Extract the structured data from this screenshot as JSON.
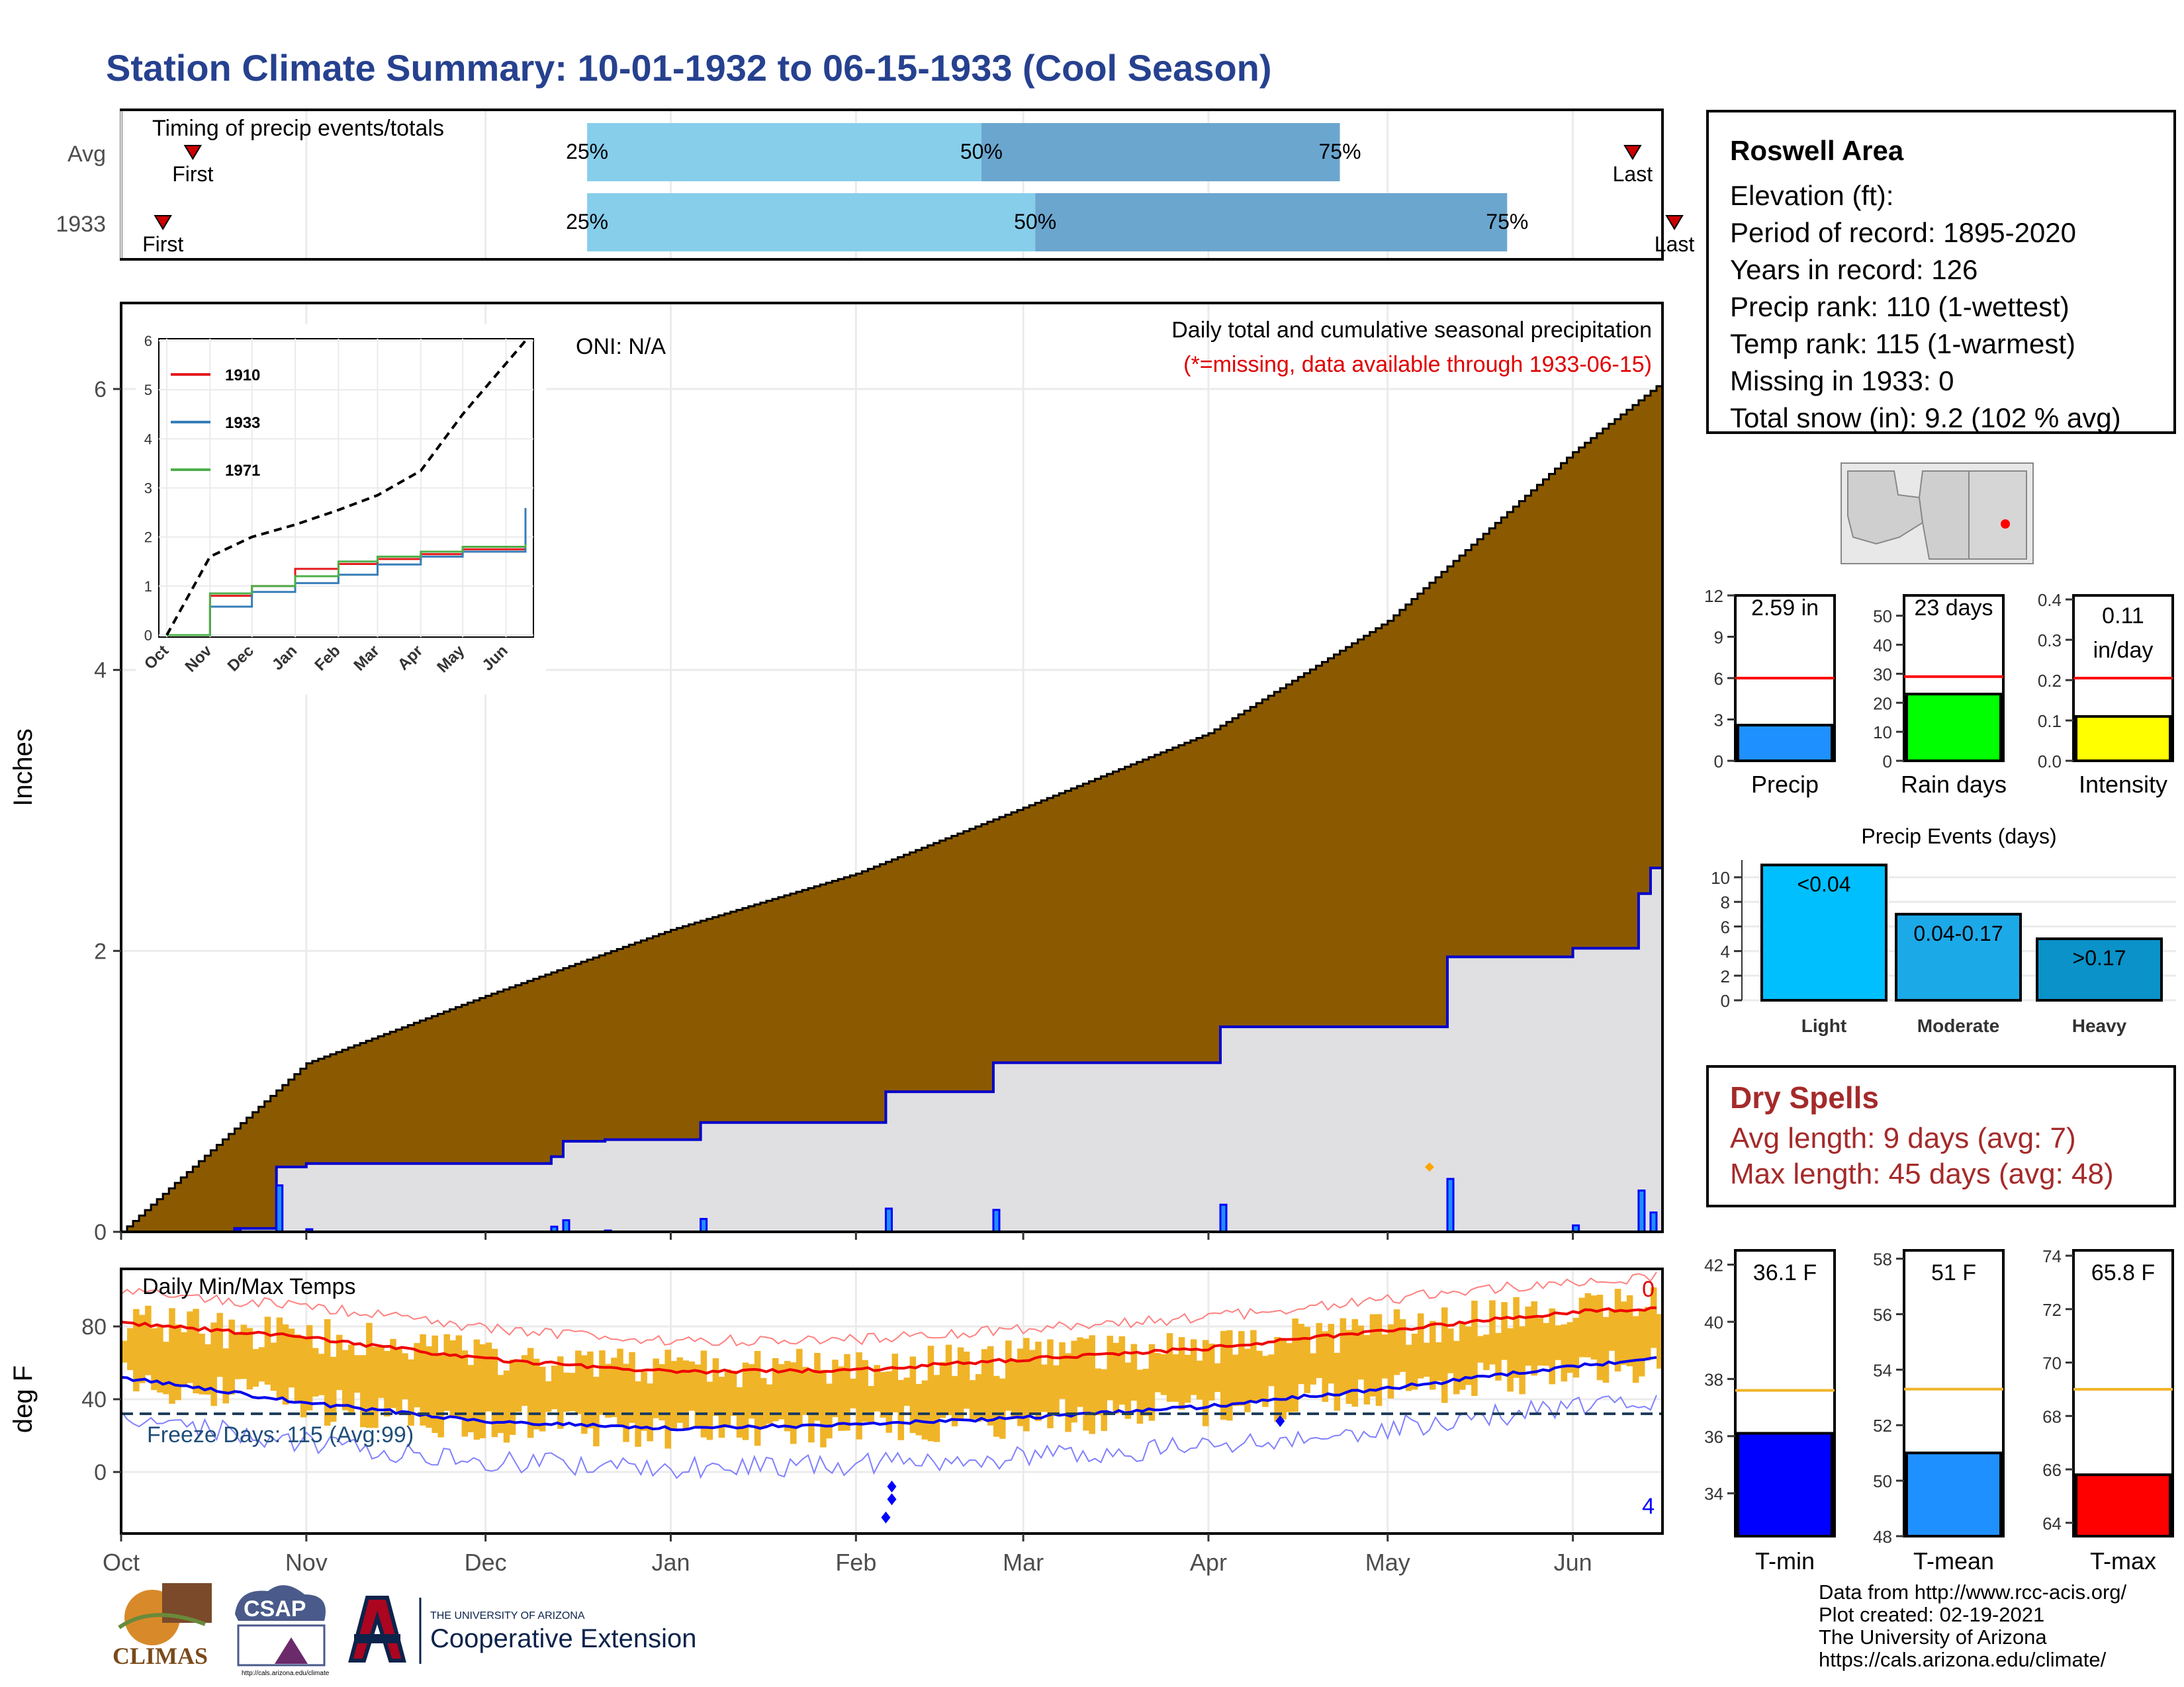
{
  "page": {
    "title": "Station Climate Summary: 10-01-1932 to 06-15-1933 (Cool Season)"
  },
  "timing": {
    "heading": "Timing of precip events/totals",
    "rows": [
      {
        "label": "Avg",
        "q25": "25%",
        "q50": "50%",
        "q75": "75%",
        "first": "First",
        "last": "Last",
        "first_day": 12,
        "q25_day": 78,
        "q50_day": 144,
        "q75_day": 204,
        "last_day": 253
      },
      {
        "label": "1933",
        "q25": "25%",
        "q50": "50%",
        "q75": "75%",
        "first": "First",
        "last": "Last",
        "first_day": 7,
        "q25_day": 78,
        "q50_day": 153,
        "q75_day": 232,
        "last_day": 260
      }
    ]
  },
  "info": {
    "name": "Roswell Area",
    "lines": [
      "Elevation (ft):",
      "Period of record: 1895-2020",
      "Years in record: 126",
      "Precip rank: 110 (1-wettest)",
      "Temp rank: 115 (1-warmest)",
      "Missing in 1933: 0",
      "Total snow (in): 9.2 (102 % avg)"
    ]
  },
  "precip_panel": {
    "ylabel": "Inches",
    "oni": "ONI: N/A",
    "legend_title": "Daily total and cumulative seasonal precipitation",
    "legend_note": "(*=missing, data available through 1933-06-15)",
    "yticks": [
      "0",
      "2",
      "4",
      "6"
    ],
    "months": [
      "Oct",
      "Nov",
      "Dec",
      "Jan",
      "Feb",
      "Mar",
      "Apr",
      "May",
      "Jun"
    ]
  },
  "inset": {
    "yticks": [
      "0",
      "1",
      "2",
      "3",
      "4",
      "5",
      "6"
    ],
    "months": [
      "Oct",
      "Nov",
      "Dec",
      "Jan",
      "Feb",
      "Mar",
      "Apr",
      "May",
      "Jun"
    ],
    "series": [
      {
        "name": "1910",
        "color": "#e41a1c"
      },
      {
        "name": "1933",
        "color": "#377eb8"
      },
      {
        "name": "1971",
        "color": "#4daf4a"
      }
    ]
  },
  "temp_panel": {
    "ylabel": "deg F",
    "title": "Daily Min/Max Temps",
    "freeze": "Freeze Days: 115 (Avg:99)",
    "top_count": "0",
    "bottom_count": "4",
    "yticks": [
      "0",
      "40",
      "80"
    ],
    "months": [
      "Oct",
      "Nov",
      "Dec",
      "Jan",
      "Feb",
      "Mar",
      "Apr",
      "May",
      "Jun"
    ]
  },
  "mini_bars": [
    {
      "label": "Precip",
      "value_text": "2.59 in",
      "value": 2.59,
      "avg": 6,
      "ymax": 12,
      "ticks": [
        "0",
        "3",
        "6",
        "9",
        "12"
      ],
      "color": "#1e90ff"
    },
    {
      "label": "Rain days",
      "value_text": "23 days",
      "value": 23,
      "avg": 29,
      "ymax": 57,
      "ticks": [
        "0",
        "10",
        "20",
        "30",
        "40",
        "50"
      ],
      "color": "#00ff00"
    },
    {
      "label": "Intensity",
      "value_text": "0.11 in/day",
      "value": 0.11,
      "avg": 0.205,
      "ymax": 0.41,
      "ticks": [
        "0.0",
        "0.1",
        "0.2",
        "0.3",
        "0.4"
      ],
      "color": "#ffff00"
    }
  ],
  "events": {
    "title": "Precip Events (days)",
    "ticks": [
      "0",
      "2",
      "4",
      "6",
      "8",
      "10"
    ],
    "bars": [
      {
        "label": "Light",
        "tag": "<0.04",
        "value": 11,
        "color": "#00bfff"
      },
      {
        "label": "Moderate",
        "tag": "0.04-0.17",
        "value": 7,
        "color": "#1ca9e8"
      },
      {
        "label": "Heavy",
        "tag": ">0.17",
        "value": 5,
        "color": "#0a92c9"
      }
    ]
  },
  "dry": {
    "heading": "Dry Spells",
    "avg": "Avg length: 9 days (avg: 7)",
    "max": "Max length: 45 days (avg: 48)"
  },
  "temp_bars": [
    {
      "label": "T-min",
      "value_text": "36.1 F",
      "value": 36.1,
      "avg": 37.6,
      "ymin": 32.5,
      "ymax": 42.5,
      "ticks": [
        "34",
        "36",
        "38",
        "40",
        "42"
      ],
      "color": "#0000ff"
    },
    {
      "label": "T-mean",
      "value_text": "51 F",
      "value": 51.0,
      "avg": 53.3,
      "ymin": 48,
      "ymax": 58.3,
      "ticks": [
        "48",
        "50",
        "52",
        "54",
        "56",
        "58"
      ],
      "color": "#1e90ff"
    },
    {
      "label": "T-max",
      "value_text": "65.8 F",
      "value": 65.8,
      "avg": 69.0,
      "ymin": 63.5,
      "ymax": 74.2,
      "ticks": [
        "64",
        "66",
        "68",
        "70",
        "72",
        "74"
      ],
      "color": "#ff0000"
    }
  ],
  "credits": {
    "lines": [
      "Data from http://www.rcc-acis.org/",
      "Plot created: 02-19-2021",
      "The University of Arizona",
      "https://cals.arizona.edu/climate/"
    ]
  },
  "logos": {
    "climas": "CLIMAS",
    "csap": "CSAP",
    "csap_url": "http://cals.arizona.edu/climate",
    "ua_small": "THE UNIVERSITY OF ARIZONA",
    "ua_big": "Cooperative Extension"
  },
  "chart_data": [
    {
      "type": "area",
      "title": "Daily total and cumulative seasonal precipitation",
      "ylabel": "Inches",
      "ylim": [
        0,
        6.5
      ],
      "x": [
        "1932-10-01",
        "1932-11-01",
        "1932-12-01",
        "1933-01-01",
        "1933-02-01",
        "1933-03-01",
        "1933-04-01",
        "1933-05-01",
        "1933-06-01",
        "1933-06-15"
      ],
      "series": [
        {
          "values": [
            0.0,
            1.2,
            1.68,
            2.15,
            2.55,
            3.02,
            3.55,
            4.35,
            5.55,
            6.02
          ]
        },
        {
          "values": [
            0.0,
            0.58,
            0.58,
            0.88,
            1.06,
            1.23,
            1.44,
            1.6,
            2.12,
            2.59
          ]
        }
      ],
      "daily_events": [
        {
          "date": "1932-10-20",
          "value": 0.02
        },
        {
          "date": "1932-10-27",
          "value": 0.36
        },
        {
          "date": "1932-11-01",
          "value": 0.02
        },
        {
          "date": "1932-12-12",
          "value": 0.04
        },
        {
          "date": "1932-12-14",
          "value": 0.09
        },
        {
          "date": "1932-12-21",
          "value": 0.01
        },
        {
          "date": "1933-01-06",
          "value": 0.1
        },
        {
          "date": "1933-02-06",
          "value": 0.18
        },
        {
          "date": "1933-02-24",
          "value": 0.17
        },
        {
          "date": "1933-04-03",
          "value": 0.21
        },
        {
          "date": "1933-05-11",
          "value": 0.41
        },
        {
          "date": "1933-06-01",
          "value": 0.05
        },
        {
          "date": "1933-06-12",
          "value": 0.32
        },
        {
          "date": "1933-06-14",
          "value": 0.15
        }
      ]
    },
    {
      "type": "line",
      "title": "",
      "ylim": [
        0,
        6
      ],
      "x": [
        "Oct",
        "Nov",
        "Dec",
        "Jan",
        "Feb",
        "Mar",
        "Apr",
        "May",
        "Jun"
      ],
      "series": [
        {
          "name": "1910",
          "values": [
            0.0,
            0.8,
            1.0,
            1.35,
            1.45,
            1.55,
            1.65,
            1.75,
            2.0
          ]
        },
        {
          "name": "1933",
          "values": [
            0.0,
            0.58,
            0.88,
            1.06,
            1.23,
            1.44,
            1.6,
            1.7,
            2.59
          ]
        },
        {
          "name": "1971",
          "values": [
            0.0,
            0.85,
            1.0,
            1.2,
            1.5,
            1.6,
            1.7,
            1.8,
            1.85
          ]
        },
        {
          "values": [
            0.0,
            1.6,
            2.0,
            2.25,
            2.55,
            2.85,
            3.35,
            4.5,
            6.0
          ]
        }
      ]
    },
    {
      "type": "bar",
      "title": "Daily Min/Max Temps",
      "ylabel": "deg F",
      "ylim": [
        -30,
        110
      ],
      "x": [
        "1932-10-01",
        "1932-11-01",
        "1932-12-01",
        "1933-01-01",
        "1933-02-01",
        "1933-03-01",
        "1933-04-01",
        "1933-05-01",
        "1933-06-01",
        "1933-06-15"
      ],
      "series": [
        {
          "values": [
            82,
            74,
            62,
            55,
            56,
            62,
            68,
            78,
            88,
            90
          ]
        },
        {
          "values": [
            52,
            38,
            28,
            24,
            26,
            30,
            36,
            46,
            58,
            62
          ]
        }
      ],
      "freeze_threshold": 32
    }
  ]
}
